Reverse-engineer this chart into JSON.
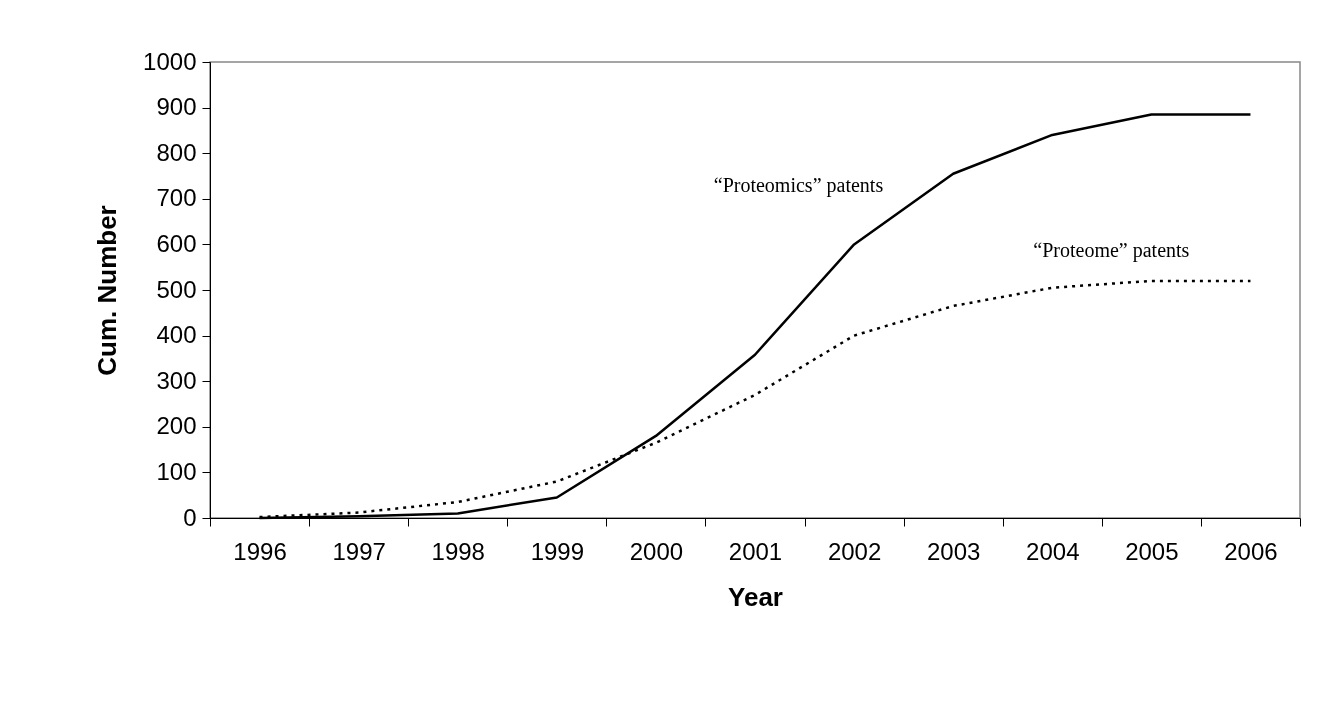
{
  "chart_data": {
    "type": "line",
    "xlabel": "Year",
    "ylabel": "Cum. Number",
    "categories": [
      "1996",
      "1997",
      "1998",
      "1999",
      "2000",
      "2001",
      "2002",
      "2003",
      "2004",
      "2005",
      "2006"
    ],
    "series": [
      {
        "name": "“Proteomics” patents",
        "color": "#000000",
        "line_style": "solid",
        "values": [
          0,
          4,
          10,
          45,
          180,
          358,
          600,
          755,
          840,
          885,
          885
        ]
      },
      {
        "name": "“Proteome” patents",
        "color": "#000000",
        "line_style": "dotted",
        "values": [
          2,
          12,
          35,
          80,
          165,
          270,
          400,
          465,
          505,
          520,
          520
        ]
      }
    ],
    "ylim": [
      0,
      1000
    ],
    "yticks": [
      0,
      100,
      200,
      300,
      400,
      500,
      600,
      700,
      800,
      900,
      1000
    ],
    "grid": false
  }
}
